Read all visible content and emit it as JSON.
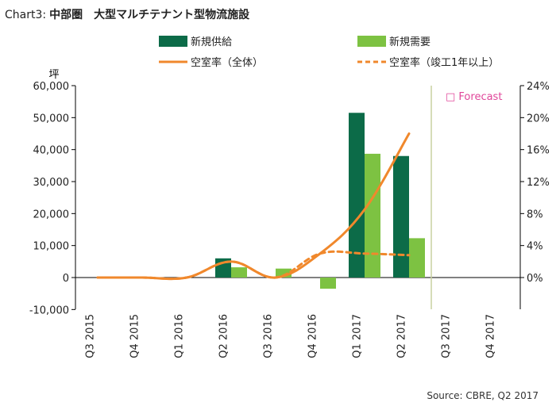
{
  "title_prefix": "Chart3:",
  "title": "中部圏　大型マルチテナント型物流施設",
  "source": "Source:  CBRE,  Q2  2017",
  "colors": {
    "supply": "#0c6b48",
    "demand": "#7dc242",
    "vacancy": "#f0882c",
    "forecast_label": "#e0469a",
    "axis": "#000000",
    "forecast_line": "#c8d0a0"
  },
  "chart_data": {
    "type": "bar",
    "unit_label": "坪",
    "categories": [
      "Q3 2015",
      "Q4 2015",
      "Q1 2016",
      "Q2 2016",
      "Q3 2016",
      "Q4 2016",
      "Q1 2017",
      "Q2 2017",
      "Q3 2017",
      "Q4 2017"
    ],
    "ylim": [
      -10000,
      60000
    ],
    "yticks": [
      "-10,000",
      "0",
      "10,000",
      "20,000",
      "30,000",
      "40,000",
      "50,000",
      "60,000"
    ],
    "y2lim": [
      -4,
      24
    ],
    "y2ticks": [
      "0%",
      "4%",
      "8%",
      "12%",
      "16%",
      "20%",
      "24%"
    ],
    "series": [
      {
        "name": "新規供給",
        "type": "bar",
        "axis": "left",
        "values": [
          0,
          0,
          0,
          6000,
          0,
          0,
          51500,
          38000,
          null,
          null
        ]
      },
      {
        "name": "新規需要",
        "type": "bar",
        "axis": "left",
        "values": [
          0,
          0,
          0,
          3200,
          2800,
          -3500,
          38700,
          12300,
          null,
          null
        ]
      },
      {
        "name": "空室率（全体）",
        "type": "line",
        "style": "solid",
        "axis": "right",
        "values": [
          0,
          0,
          0,
          2,
          0,
          3,
          8.5,
          18,
          null,
          null
        ]
      },
      {
        "name": "空室率（竣工1年以上）",
        "type": "line",
        "style": "dashed",
        "axis": "right",
        "values": [
          0,
          0,
          0,
          2,
          0,
          3,
          3,
          2.8,
          null,
          null
        ]
      }
    ],
    "forecast_label": "□ Forecast",
    "forecast_start_category": "Q3 2017",
    "grid": false,
    "legend_position": "top"
  }
}
